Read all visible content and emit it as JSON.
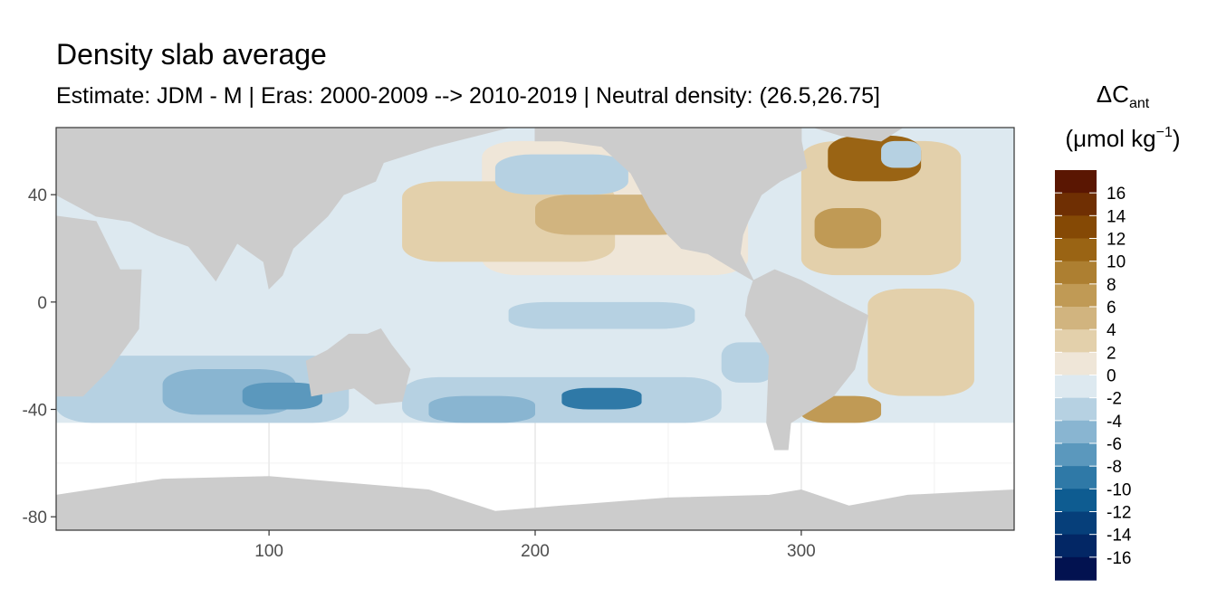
{
  "chart_data": {
    "type": "heatmap",
    "title": "Density slab average",
    "subtitle": "Estimate: JDM - M | Eras: 2000-2009 --> 2010-2019 | Neutral density: (26.5,26.75]",
    "xlabel": "",
    "ylabel": "",
    "xlim": [
      20,
      380
    ],
    "ylim": [
      -85,
      65
    ],
    "x_ticks": [
      100,
      200,
      300
    ],
    "y_ticks": [
      40,
      0,
      -40,
      -80
    ],
    "x_tick_labels": [
      "100",
      "200",
      "300"
    ],
    "y_tick_labels": [
      "40",
      "0",
      "-40",
      "-80"
    ],
    "grid": true,
    "legend": {
      "position": "right",
      "title_line1": "ΔC",
      "title_subscript": "ant",
      "title_line2_open": "(μmol kg",
      "title_line2_sup": "−1",
      "title_line2_close": ")",
      "breaks": [
        "16",
        "14",
        "12",
        "10",
        "8",
        "6",
        "4",
        "2",
        "0",
        "-2",
        "-4",
        "-6",
        "-8",
        "-10",
        "-12",
        "-14",
        "-16"
      ],
      "bins": [
        {
          "range": [
            16,
            18
          ],
          "color": "#5a1602"
        },
        {
          "range": [
            14,
            16
          ],
          "color": "#6f2f03"
        },
        {
          "range": [
            12,
            14
          ],
          "color": "#854905"
        },
        {
          "range": [
            10,
            12
          ],
          "color": "#9a6414"
        },
        {
          "range": [
            8,
            10
          ],
          "color": "#ad7f31"
        },
        {
          "range": [
            6,
            8
          ],
          "color": "#c09a55"
        },
        {
          "range": [
            4,
            6
          ],
          "color": "#d1b47f"
        },
        {
          "range": [
            2,
            4
          ],
          "color": "#e3d0ab"
        },
        {
          "range": [
            0,
            2
          ],
          "color": "#efe6d8"
        },
        {
          "range": [
            -2,
            0
          ],
          "color": "#dde9f0"
        },
        {
          "range": [
            -4,
            -2
          ],
          "color": "#b6d1e2"
        },
        {
          "range": [
            -6,
            -4
          ],
          "color": "#89b5d1"
        },
        {
          "range": [
            -8,
            -6
          ],
          "color": "#5b98bd"
        },
        {
          "range": [
            -10,
            -8
          ],
          "color": "#2f79a7"
        },
        {
          "range": [
            -12,
            -10
          ],
          "color": "#0e5c91"
        },
        {
          "range": [
            -14,
            -12
          ],
          "color": "#063f7a"
        },
        {
          "range": [
            -16,
            -14
          ],
          "color": "#032765"
        },
        {
          "range": [
            -18,
            -16
          ],
          "color": "#021250"
        }
      ]
    },
    "ocean_regions": [
      {
        "lon": [
          20,
          380
        ],
        "lat": [
          -45,
          65
        ],
        "value": -1
      },
      {
        "lon": [
          180,
          280
        ],
        "lat": [
          10,
          60
        ],
        "value": 1
      },
      {
        "lon": [
          150,
          230
        ],
        "lat": [
          15,
          45
        ],
        "value": 3
      },
      {
        "lon": [
          200,
          260
        ],
        "lat": [
          25,
          40
        ],
        "value": 5
      },
      {
        "lon": [
          185,
          235
        ],
        "lat": [
          40,
          55
        ],
        "value": -3
      },
      {
        "lon": [
          300,
          360
        ],
        "lat": [
          10,
          60
        ],
        "value": 3
      },
      {
        "lon": [
          305,
          330
        ],
        "lat": [
          20,
          35
        ],
        "value": 7
      },
      {
        "lon": [
          310,
          345
        ],
        "lat": [
          45,
          62
        ],
        "value": 11
      },
      {
        "lon": [
          330,
          345
        ],
        "lat": [
          50,
          60
        ],
        "value": -3
      },
      {
        "lon": [
          325,
          365
        ],
        "lat": [
          -35,
          5
        ],
        "value": 2
      },
      {
        "lon": [
          300,
          330
        ],
        "lat": [
          -45,
          -35
        ],
        "value": 7
      },
      {
        "lon": [
          20,
          130
        ],
        "lat": [
          -45,
          -20
        ],
        "value": -3
      },
      {
        "lon": [
          60,
          110
        ],
        "lat": [
          -42,
          -25
        ],
        "value": -6
      },
      {
        "lon": [
          90,
          120
        ],
        "lat": [
          -40,
          -30
        ],
        "value": -8
      },
      {
        "lon": [
          150,
          270
        ],
        "lat": [
          -45,
          -28
        ],
        "value": -3
      },
      {
        "lon": [
          160,
          200
        ],
        "lat": [
          -45,
          -35
        ],
        "value": -6
      },
      {
        "lon": [
          210,
          240
        ],
        "lat": [
          -40,
          -32
        ],
        "value": -9
      },
      {
        "lon": [
          270,
          290
        ],
        "lat": [
          -30,
          -15
        ],
        "value": -3
      },
      {
        "lon": [
          190,
          260
        ],
        "lat": [
          -10,
          0
        ],
        "value": -3
      }
    ],
    "land": [
      {
        "name": "Africa"
      },
      {
        "name": "Eurasia"
      },
      {
        "name": "India"
      },
      {
        "name": "Australia"
      },
      {
        "name": "North America"
      },
      {
        "name": "South America"
      },
      {
        "name": "Greenland"
      },
      {
        "name": "Antarctica"
      }
    ]
  }
}
